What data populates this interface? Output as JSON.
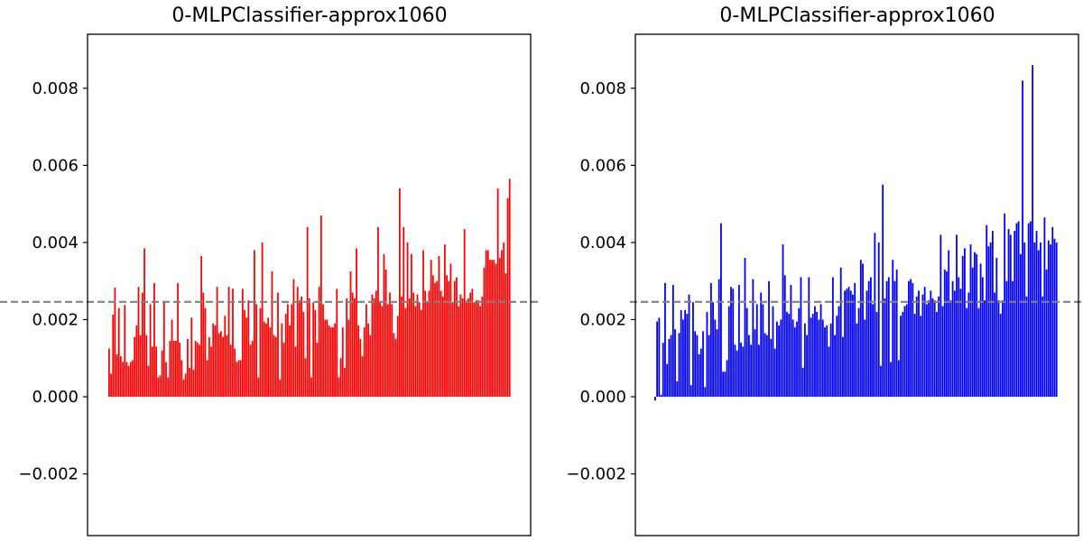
{
  "chart_data": [
    {
      "type": "bar",
      "title": "0-MLPClassifier-approx1060",
      "xlabel": "",
      "ylabel": "",
      "ylim": [
        -0.0036,
        0.0094
      ],
      "yticks": [
        -0.002,
        0.0,
        0.002,
        0.004,
        0.006,
        0.008
      ],
      "ytick_labels": [
        "−0.002",
        "0.000",
        "0.002",
        "0.004",
        "0.006",
        "0.008"
      ],
      "color": "#ff0000",
      "reference_line": {
        "value": 0.00246,
        "style": "dashed",
        "color": "#808080"
      },
      "values": [
        0.00125,
        0.0006,
        0.00213,
        0.00283,
        0.0011,
        0.0023,
        0.00105,
        0.0009,
        0.00238,
        0.0009,
        0.0008,
        0.0009,
        0.00095,
        0.00155,
        0.00185,
        0.00285,
        0.0016,
        0.0027,
        0.00385,
        0.0016,
        0.0008,
        0.0024,
        0.0013,
        0.00295,
        0.0013,
        0.0005,
        0.00055,
        0.0012,
        0.00245,
        0.0009,
        0.0005,
        0.00145,
        0.002,
        0.00145,
        0.00145,
        0.00295,
        0.0014,
        0.00095,
        0.00045,
        0.0006,
        0.0015,
        0.00075,
        0.00205,
        0.0007,
        0.00145,
        0.0014,
        0.00135,
        0.00365,
        0.0027,
        0.0023,
        0.00095,
        0.00155,
        0.0013,
        0.0019,
        0.00185,
        0.00285,
        0.00165,
        0.0017,
        0.00155,
        0.0021,
        0.0016,
        0.00285,
        0.00135,
        0.0028,
        0.00125,
        0.0009,
        0.00095,
        0.00095,
        0.0028,
        0.00225,
        0.00205,
        0.0025,
        0.00135,
        0.00145,
        0.0038,
        0.0024,
        0.0005,
        0.0023,
        0.004,
        0.00195,
        0.0019,
        0.00205,
        0.0018,
        0.00325,
        0.0016,
        0.00155,
        0.0027,
        0.00045,
        0.0019,
        0.0014,
        0.00215,
        0.0024,
        0.00185,
        0.0024,
        0.00305,
        0.0013,
        0.00285,
        0.0025,
        0.0026,
        0.0022,
        0.001,
        0.0044,
        0.00255,
        0.0005,
        0.00245,
        0.00225,
        0.0014,
        0.00285,
        0.0047,
        0.0024,
        0.002,
        0.002,
        0.00185,
        0.0018,
        0.0018,
        0.0019,
        0.0028,
        0.0005,
        0.001,
        0.0018,
        0.00075,
        0.00255,
        0.002,
        0.00325,
        0.0027,
        0.00255,
        0.00385,
        0.00185,
        0.0015,
        0.00105,
        0.0018,
        0.0024,
        0.0019,
        0.0016,
        0.00265,
        0.00255,
        0.00275,
        0.0044,
        0.00245,
        0.00235,
        0.0037,
        0.0033,
        0.0024,
        0.0027,
        0.0024,
        0.00165,
        0.0015,
        0.0021,
        0.0054,
        0.0026,
        0.0044,
        0.0023,
        0.004,
        0.00255,
        0.0037,
        0.0027,
        0.00235,
        0.00265,
        0.00245,
        0.00225,
        0.0038,
        0.00275,
        0.00245,
        0.00275,
        0.00355,
        0.00315,
        0.00295,
        0.003,
        0.00365,
        0.00275,
        0.0026,
        0.00395,
        0.00315,
        0.003,
        0.00345,
        0.00245,
        0.003,
        0.0031,
        0.00235,
        0.00265,
        0.00255,
        0.00435,
        0.0025,
        0.00255,
        0.0027,
        0.0028,
        0.00245,
        0.0025,
        0.0025,
        0.00235,
        0.0026,
        0.00335,
        0.0038,
        0.0038,
        0.00355,
        0.00355,
        0.00355,
        0.00345,
        0.0054,
        0.0036,
        0.0038,
        0.004,
        0.0032,
        0.00515,
        0.00565
      ]
    },
    {
      "type": "bar",
      "title": "0-MLPClassifier-approx1060",
      "xlabel": "",
      "ylabel": "",
      "ylim": [
        -0.0036,
        0.0094
      ],
      "yticks": [
        -0.002,
        0.0,
        0.002,
        0.004,
        0.006,
        0.008
      ],
      "ytick_labels": [
        "−0.002",
        "0.000",
        "0.002",
        "0.004",
        "0.006",
        "0.008"
      ],
      "color": "#0000ff",
      "reference_line": {
        "value": 0.00246,
        "style": "dashed",
        "color": "#808080"
      },
      "values": [
        -0.0001,
        0.00195,
        0.00205,
        5e-05,
        0.0014,
        0.00295,
        0.00085,
        0.0015,
        0.0016,
        0.0029,
        0.00175,
        0.0004,
        0.00165,
        0.00225,
        0.002,
        0.00225,
        0.00215,
        0.00265,
        0.0003,
        0.00245,
        0.0017,
        0.0016,
        0.0011,
        0.00125,
        0.0017,
        0.00025,
        0.0022,
        0.0016,
        0.00295,
        0.00245,
        0.002,
        0.00175,
        0.00305,
        0.0045,
        0.00065,
        0.00065,
        0.00095,
        0.00235,
        0.00285,
        0.0028,
        0.00135,
        0.0012,
        0.0029,
        0.0014,
        0.0013,
        0.0036,
        0.0023,
        0.0016,
        0.00135,
        0.00305,
        0.00175,
        0.0024,
        0.00135,
        0.0027,
        0.0024,
        0.00165,
        0.0016,
        0.003,
        0.0015,
        0.00235,
        0.00125,
        0.00195,
        0.00185,
        0.002,
        0.00395,
        0.00315,
        0.0022,
        0.00215,
        0.0029,
        0.002,
        0.0018,
        0.00195,
        0.0023,
        0.0031,
        0.00075,
        0.0019,
        0.0016,
        0.0031,
        0.00205,
        0.00215,
        0.00235,
        0.0022,
        0.002,
        0.0024,
        0.002,
        0.0018,
        0.00185,
        0.0013,
        0.0019,
        0.0031,
        0.0016,
        0.0021,
        0.00235,
        0.00335,
        0.00155,
        0.00275,
        0.0028,
        0.00285,
        0.00275,
        0.00265,
        0.00295,
        0.0019,
        0.0023,
        0.00355,
        0.00345,
        0.002,
        0.00275,
        0.003,
        0.0031,
        0.0024,
        0.00425,
        0.0022,
        0.004,
        0.0008,
        0.0055,
        0.00255,
        0.003,
        0.0031,
        0.0009,
        0.00355,
        0.003,
        0.0033,
        0.00095,
        0.0021,
        0.0022,
        0.00235,
        0.0024,
        0.003,
        0.00305,
        0.00295,
        0.00215,
        0.0026,
        0.00275,
        0.0021,
        0.00265,
        0.00285,
        0.0024,
        0.0025,
        0.00275,
        0.00255,
        0.0025,
        0.0022,
        0.0026,
        0.0042,
        0.00235,
        0.0033,
        0.00325,
        0.0038,
        0.0025,
        0.003,
        0.00275,
        0.0042,
        0.0031,
        0.0028,
        0.00365,
        0.00385,
        0.0023,
        0.0027,
        0.00395,
        0.00335,
        0.00375,
        0.0037,
        0.0023,
        0.00345,
        0.0031,
        0.0025,
        0.00445,
        0.0039,
        0.004,
        0.0043,
        0.0027,
        0.0036,
        0.0025,
        0.00215,
        0.0025,
        0.00475,
        0.003,
        0.00435,
        0.0042,
        0.003,
        0.0043,
        0.0045,
        0.00455,
        0.0037,
        0.0082,
        0.004,
        0.0026,
        0.0045,
        0.00455,
        0.0086,
        0.004,
        0.0043,
        0.0038,
        0.004,
        0.0026,
        0.00465,
        0.0033,
        0.00405,
        0.00395,
        0.0044,
        0.0041,
        0.004
      ]
    }
  ]
}
